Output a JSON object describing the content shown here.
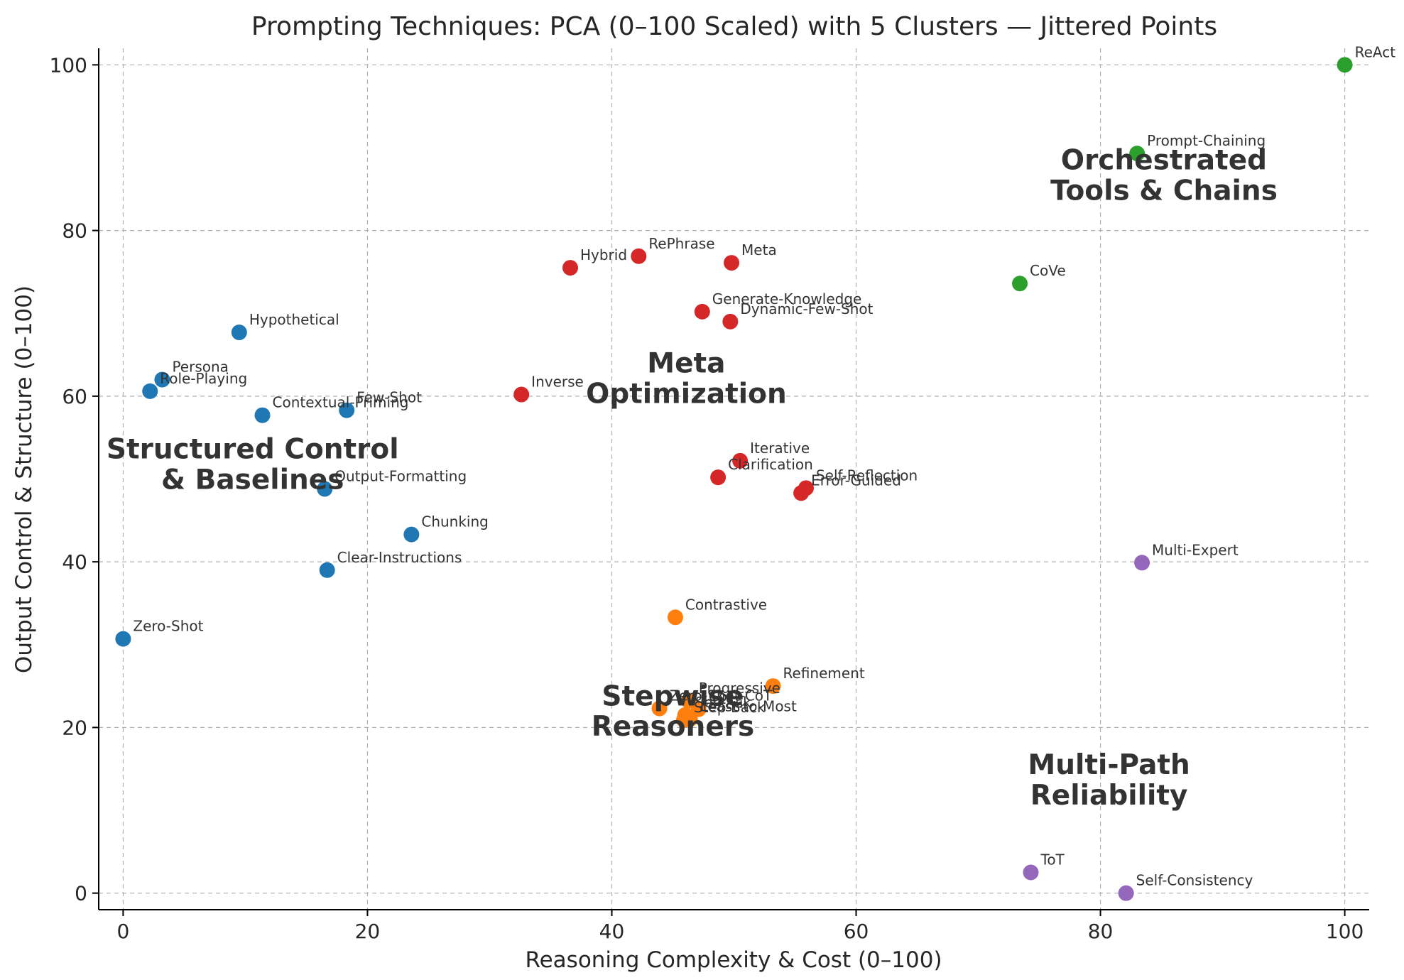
{
  "chart_data": {
    "type": "scatter",
    "title": "Prompting Techniques: PCA (0–100 Scaled) with 5 Clusters — Jittered Points",
    "xlabel": "Reasoning Complexity & Cost (0–100)",
    "ylabel": "Output Control & Structure (0–100)",
    "xlim": [
      -2,
      102
    ],
    "ylim": [
      -2,
      102
    ],
    "xticks": [
      "0",
      "20",
      "40",
      "60",
      "80",
      "100"
    ],
    "yticks": [
      "0",
      "20",
      "40",
      "60",
      "80",
      "100"
    ],
    "xtick_values": [
      0,
      20,
      40,
      60,
      80,
      100
    ],
    "ytick_values": [
      0,
      20,
      40,
      60,
      80,
      100
    ],
    "grid": true,
    "colors": {
      "blue": "#1f77b4",
      "orange": "#ff7f0e",
      "green": "#2ca02c",
      "red": "#d62728",
      "purple": "#9467bd"
    },
    "points": [
      {
        "label": "ReAct",
        "x": 100,
        "y": 100,
        "color": "#2ca02c"
      },
      {
        "label": "Prompt-Chaining",
        "x": 83,
        "y": 89.3,
        "color": "#2ca02c"
      },
      {
        "label": "CoVe",
        "x": 73.4,
        "y": 73.6,
        "color": "#2ca02c"
      },
      {
        "label": "RePhrase",
        "x": 42.2,
        "y": 76.9,
        "color": "#d62728"
      },
      {
        "label": "Hybrid",
        "x": 36.6,
        "y": 75.5,
        "color": "#d62728"
      },
      {
        "label": "Meta",
        "x": 49.8,
        "y": 76.1,
        "color": "#d62728"
      },
      {
        "label": "Generate-Knowledge",
        "x": 47.4,
        "y": 70.2,
        "color": "#d62728"
      },
      {
        "label": "Dynamic-Few-Shot",
        "x": 49.7,
        "y": 69,
        "color": "#d62728"
      },
      {
        "label": "Inverse",
        "x": 32.6,
        "y": 60.2,
        "color": "#d62728"
      },
      {
        "label": "Iterative",
        "x": 50.5,
        "y": 52.2,
        "color": "#d62728"
      },
      {
        "label": "Clarification",
        "x": 48.7,
        "y": 50.2,
        "color": "#d62728"
      },
      {
        "label": "Self-Reflection",
        "x": 55.9,
        "y": 48.9,
        "color": "#d62728"
      },
      {
        "label": "Error-Guided",
        "x": 55.5,
        "y": 48.3,
        "color": "#d62728"
      },
      {
        "label": "Hypothetical",
        "x": 9.5,
        "y": 67.7,
        "color": "#1f77b4"
      },
      {
        "label": "Persona",
        "x": 3.2,
        "y": 62,
        "color": "#1f77b4"
      },
      {
        "label": "Role-Playing",
        "x": 2.2,
        "y": 60.6,
        "color": "#1f77b4"
      },
      {
        "label": "Contextual-Priming",
        "x": 11.4,
        "y": 57.7,
        "color": "#1f77b4"
      },
      {
        "label": "Few-Shot",
        "x": 18.3,
        "y": 58.3,
        "color": "#1f77b4"
      },
      {
        "label": "Output-Formatting",
        "x": 16.5,
        "y": 48.8,
        "color": "#1f77b4"
      },
      {
        "label": "Chunking",
        "x": 23.6,
        "y": 43.3,
        "color": "#1f77b4"
      },
      {
        "label": "Clear-Instructions",
        "x": 16.7,
        "y": 39,
        "color": "#1f77b4"
      },
      {
        "label": "Zero-Shot",
        "x": 0,
        "y": 30.7,
        "color": "#1f77b4"
      },
      {
        "label": "Multi-Expert",
        "x": 83.4,
        "y": 39.9,
        "color": "#9467bd"
      },
      {
        "label": "ToT",
        "x": 74.3,
        "y": 2.5,
        "color": "#9467bd"
      },
      {
        "label": "Self-Consistency",
        "x": 82.1,
        "y": 0,
        "color": "#9467bd"
      },
      {
        "label": "Contrastive",
        "x": 45.2,
        "y": 33.3,
        "color": "#ff7f0e"
      },
      {
        "label": "Refinement",
        "x": 53.2,
        "y": 25,
        "color": "#ff7f0e"
      },
      {
        "label": "Progressive",
        "x": 46.3,
        "y": 23.2,
        "color": "#ff7f0e"
      },
      {
        "label": "Zero-Shot-CoT",
        "x": 43.9,
        "y": 22.3,
        "color": "#ff7f0e"
      },
      {
        "label": "CoT",
        "x": 47.1,
        "y": 22.2,
        "color": "#ff7f0e"
      },
      {
        "label": "Self-Ask",
        "x": 46,
        "y": 21.5,
        "color": "#ff7f0e"
      },
      {
        "label": "Least-to-Most",
        "x": 46.4,
        "y": 21,
        "color": "#ff7f0e"
      },
      {
        "label": "Step-Back",
        "x": 45.9,
        "y": 20.9,
        "color": "#ff7f0e"
      }
    ],
    "clusters": [
      {
        "lines": [
          "Orchestrated",
          "Tools & Chains"
        ],
        "x": 85.2,
        "y": 87.2
      },
      {
        "lines": [
          "Meta",
          "Optimization"
        ],
        "x": 46.1,
        "y": 62.7
      },
      {
        "lines": [
          "Structured Control",
          "& Baselines"
        ],
        "x": 10.6,
        "y": 52.3
      },
      {
        "lines": [
          "Stepwise",
          "Reasoners"
        ],
        "x": 45,
        "y": 22.5
      },
      {
        "lines": [
          "Multi-Path",
          "Reliability"
        ],
        "x": 80.7,
        "y": 14.2
      }
    ]
  }
}
